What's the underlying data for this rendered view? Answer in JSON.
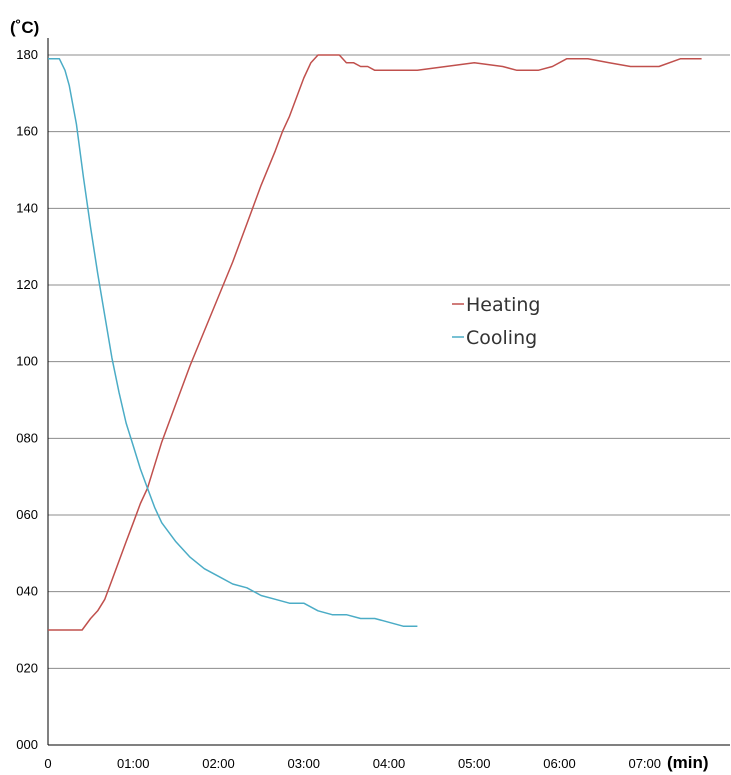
{
  "chart_data": {
    "type": "line",
    "y_unit_label": "(˚C)",
    "x_unit_label": "(min)",
    "xlim": [
      0,
      480
    ],
    "ylim": [
      0,
      180
    ],
    "y_ticks": [
      {
        "value": 0,
        "label": "000"
      },
      {
        "value": 20,
        "label": "020"
      },
      {
        "value": 40,
        "label": "040"
      },
      {
        "value": 60,
        "label": "060"
      },
      {
        "value": 80,
        "label": "080"
      },
      {
        "value": 100,
        "label": "100"
      },
      {
        "value": 120,
        "label": "120"
      },
      {
        "value": 140,
        "label": "140"
      },
      {
        "value": 160,
        "label": "160"
      },
      {
        "value": 180,
        "label": "180"
      }
    ],
    "x_ticks": [
      {
        "value": 0,
        "label": "0"
      },
      {
        "value": 60,
        "label": "01:00"
      },
      {
        "value": 120,
        "label": "02:00"
      },
      {
        "value": 180,
        "label": "03:00"
      },
      {
        "value": 240,
        "label": "04:00"
      },
      {
        "value": 300,
        "label": "05:00"
      },
      {
        "value": 360,
        "label": "06:00"
      },
      {
        "value": 420,
        "label": "07:00"
      }
    ],
    "grid": "horizontal",
    "legend_position": "center-right",
    "series": [
      {
        "name": "Heating",
        "color": "#c0504d",
        "x": [
          0,
          20,
          24,
          30,
          35,
          40,
          45,
          50,
          55,
          60,
          65,
          70,
          80,
          90,
          100,
          110,
          120,
          130,
          140,
          150,
          160,
          165,
          170,
          175,
          180,
          185,
          190,
          195,
          200,
          205,
          210,
          215,
          220,
          225,
          230,
          240,
          250,
          260,
          280,
          300,
          320,
          330,
          345,
          355,
          365,
          380,
          395,
          410,
          430,
          445,
          460
        ],
        "y": [
          30,
          30,
          30,
          33,
          35,
          38,
          43,
          48,
          53,
          58,
          63,
          67,
          79,
          89,
          99,
          108,
          117,
          126,
          136,
          146,
          155,
          160,
          164,
          169,
          174,
          178,
          180,
          180,
          180,
          180,
          178,
          178,
          177,
          177,
          176,
          176,
          176,
          176,
          177,
          178,
          177,
          176,
          176,
          177,
          179,
          179,
          178,
          177,
          177,
          179,
          179
        ]
      },
      {
        "name": "Cooling",
        "color": "#4bacc6",
        "x": [
          0,
          8,
          12,
          15,
          20,
          25,
          30,
          35,
          40,
          45,
          50,
          55,
          60,
          65,
          70,
          75,
          80,
          90,
          100,
          110,
          120,
          130,
          140,
          150,
          160,
          170,
          180,
          190,
          200,
          210,
          220,
          230,
          240,
          250,
          260
        ],
        "y": [
          179,
          179,
          176,
          172,
          162,
          148,
          135,
          123,
          112,
          101,
          92,
          84,
          78,
          72,
          67,
          62,
          58,
          53,
          49,
          46,
          44,
          42,
          41,
          39,
          38,
          37,
          37,
          35,
          34,
          34,
          33,
          33,
          32,
          31,
          31
        ]
      }
    ]
  }
}
